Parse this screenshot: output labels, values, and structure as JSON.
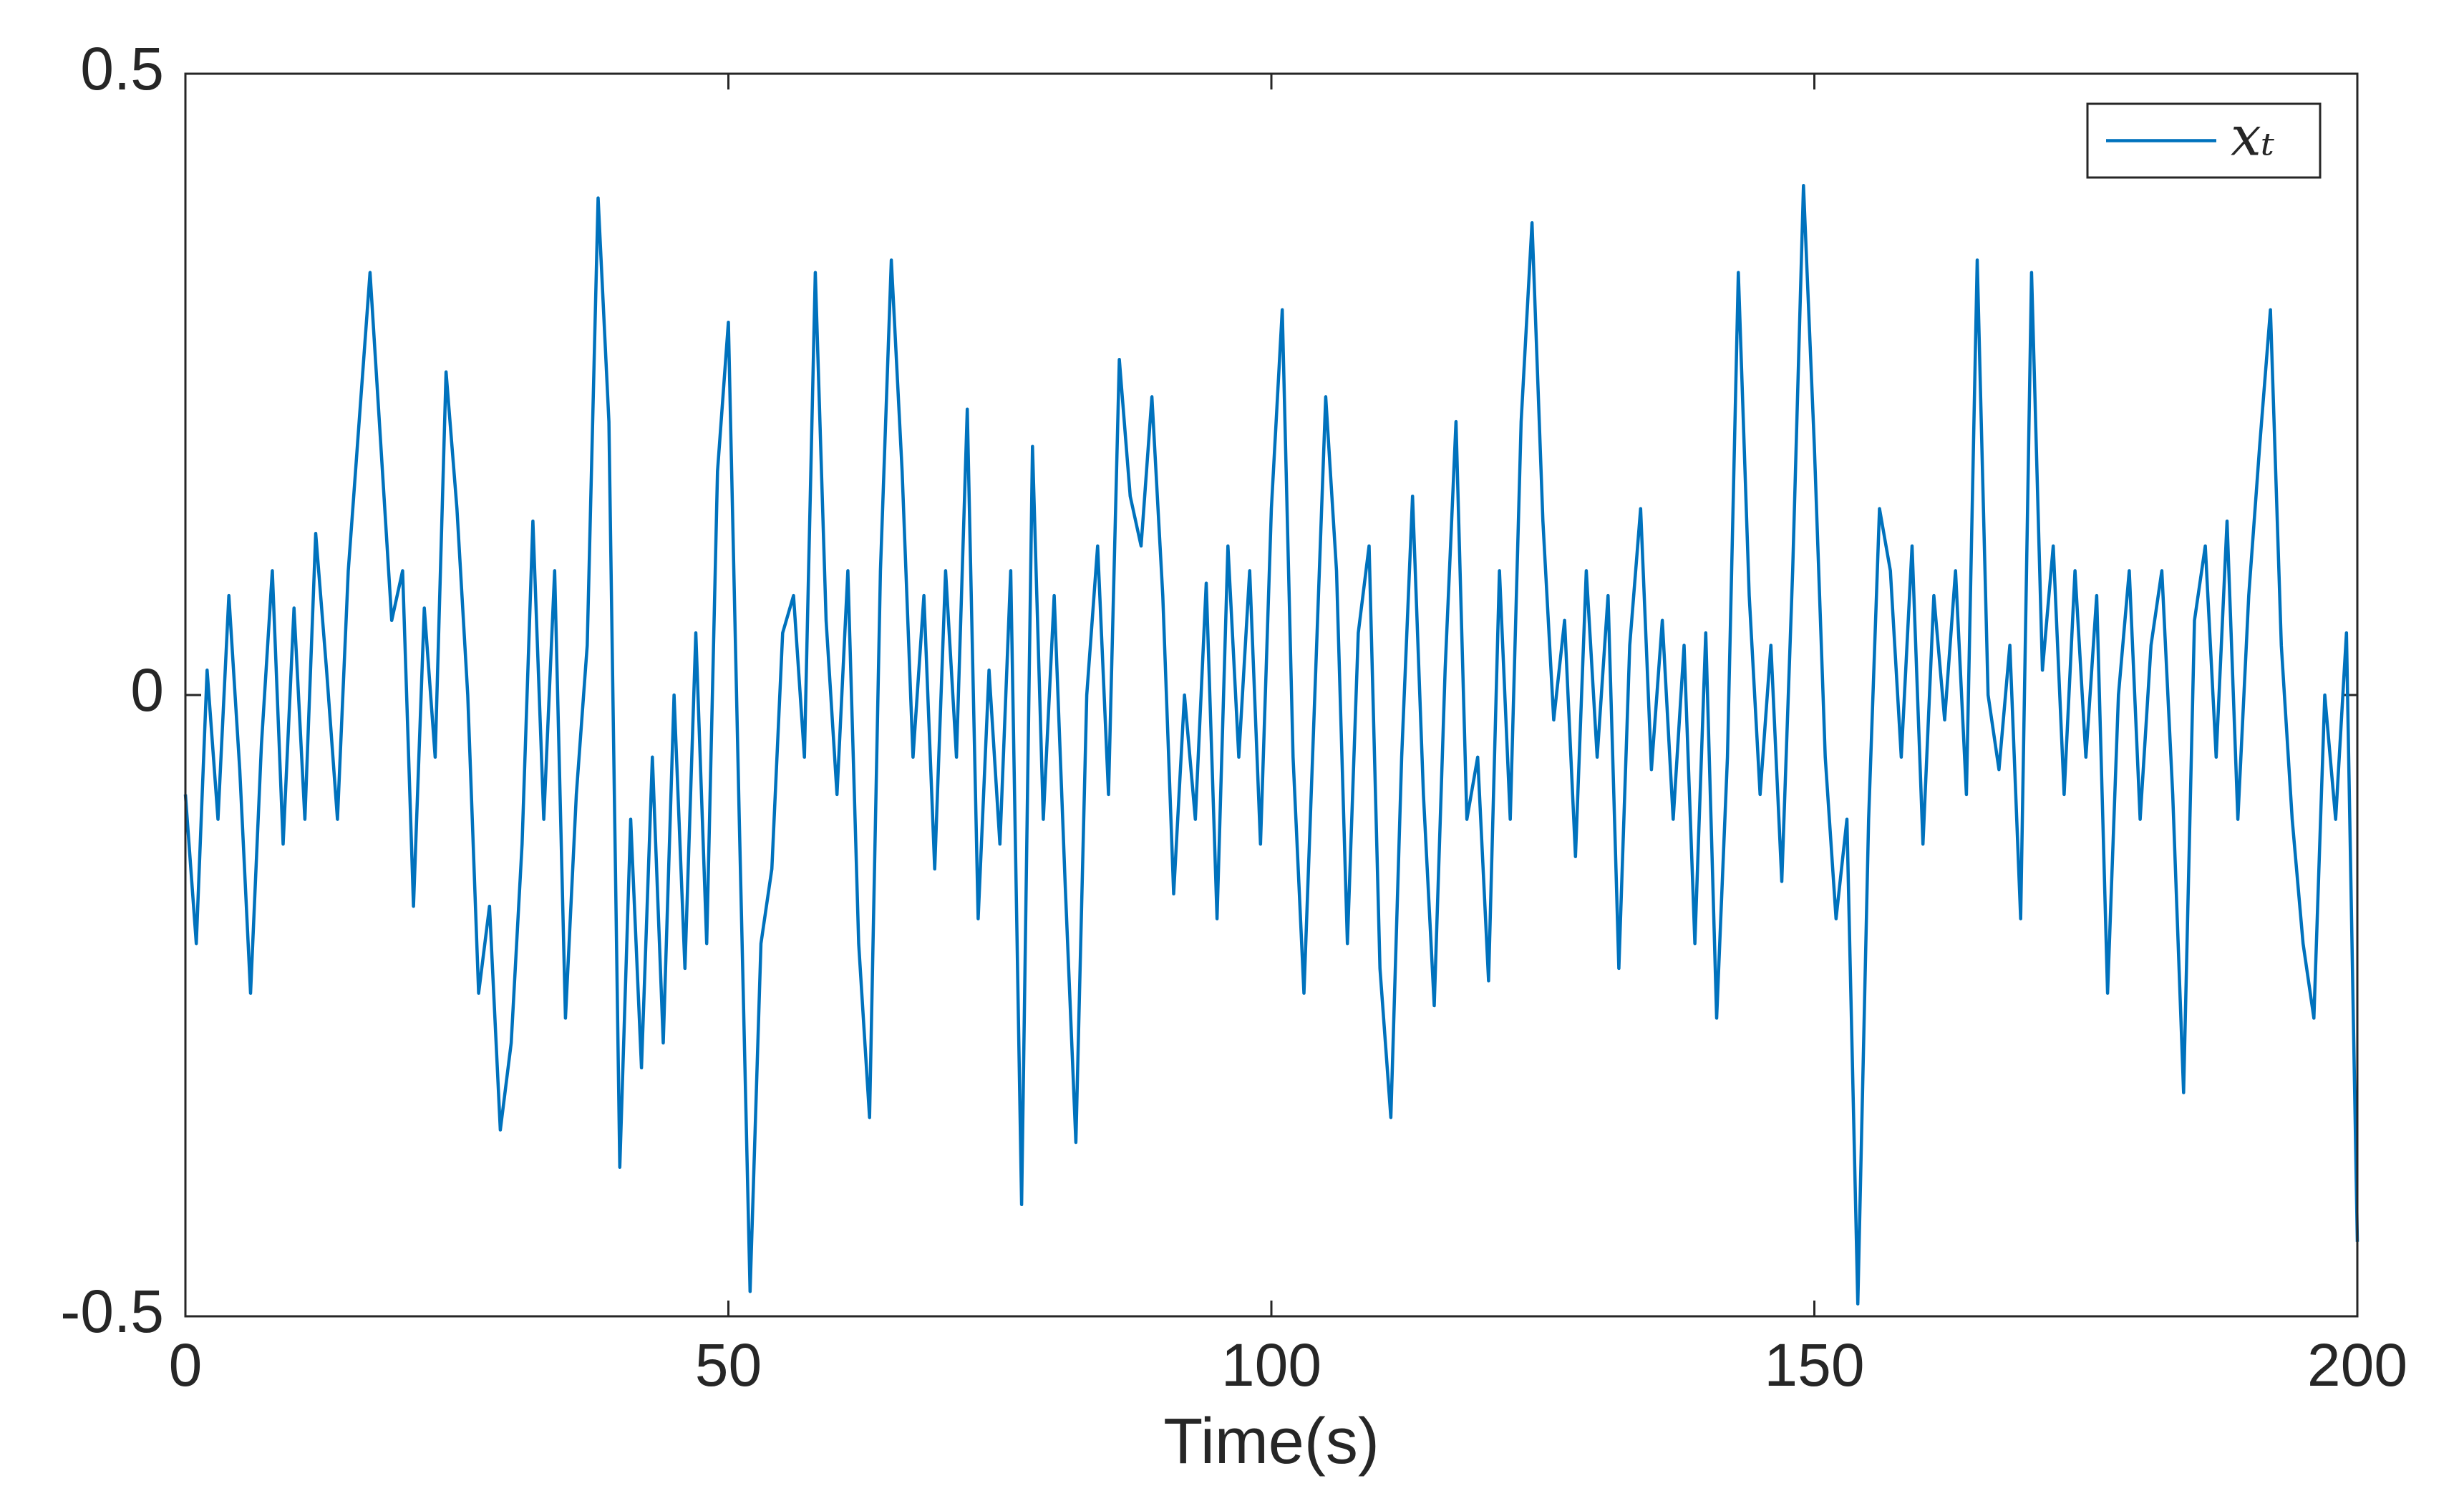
{
  "chart_data": {
    "type": "line",
    "xlabel": "Time(s)",
    "x": [
      0,
      1,
      2,
      3,
      4,
      5,
      6,
      7,
      8,
      9,
      10,
      11,
      12,
      13,
      14,
      15,
      16,
      17,
      18,
      19,
      20,
      21,
      22,
      23,
      24,
      25,
      26,
      27,
      28,
      29,
      30,
      31,
      32,
      33,
      34,
      35,
      36,
      37,
      38,
      39,
      40,
      41,
      42,
      43,
      44,
      45,
      46,
      47,
      48,
      49,
      50,
      51,
      52,
      53,
      54,
      55,
      56,
      57,
      58,
      59,
      60,
      61,
      62,
      63,
      64,
      65,
      66,
      67,
      68,
      69,
      70,
      71,
      72,
      73,
      74,
      75,
      76,
      77,
      78,
      79,
      80,
      81,
      82,
      83,
      84,
      85,
      86,
      87,
      88,
      89,
      90,
      91,
      92,
      93,
      94,
      95,
      96,
      97,
      98,
      99,
      100,
      101,
      102,
      103,
      104,
      105,
      106,
      107,
      108,
      109,
      110,
      111,
      112,
      113,
      114,
      115,
      116,
      117,
      118,
      119,
      120,
      121,
      122,
      123,
      124,
      125,
      126,
      127,
      128,
      129,
      130,
      131,
      132,
      133,
      134,
      135,
      136,
      137,
      138,
      139,
      140,
      141,
      142,
      143,
      144,
      145,
      146,
      147,
      148,
      149,
      150,
      151,
      152,
      153,
      154,
      155,
      156,
      157,
      158,
      159,
      160,
      161,
      162,
      163,
      164,
      165,
      166,
      167,
      168,
      169,
      170,
      171,
      172,
      173,
      174,
      175,
      176,
      177,
      178,
      179,
      180,
      181,
      182,
      183,
      184,
      185,
      186,
      187,
      188,
      189,
      190,
      191,
      192,
      193,
      194,
      195,
      196,
      197,
      198,
      199,
      200
    ],
    "series": [
      {
        "name": "𝑥ₜ",
        "color": "#0072bd",
        "values": [
          -0.08,
          -0.2,
          0.02,
          -0.1,
          0.08,
          -0.06,
          -0.24,
          -0.04,
          0.1,
          -0.12,
          0.07,
          -0.1,
          0.13,
          0.02,
          -0.1,
          0.1,
          0.22,
          0.34,
          0.2,
          0.06,
          0.1,
          -0.17,
          0.07,
          -0.05,
          0.26,
          0.15,
          0.0,
          -0.24,
          -0.17,
          -0.35,
          -0.28,
          -0.12,
          0.14,
          -0.1,
          0.1,
          -0.26,
          -0.08,
          0.04,
          0.4,
          0.22,
          -0.38,
          -0.1,
          -0.3,
          -0.05,
          -0.28,
          0.0,
          -0.22,
          0.05,
          -0.2,
          0.18,
          0.3,
          -0.1,
          -0.48,
          -0.2,
          -0.14,
          0.05,
          0.08,
          -0.05,
          0.34,
          0.06,
          -0.08,
          0.1,
          -0.2,
          -0.34,
          0.1,
          0.35,
          0.18,
          -0.05,
          0.08,
          -0.14,
          0.1,
          -0.05,
          0.23,
          -0.18,
          0.02,
          -0.12,
          0.1,
          -0.41,
          0.2,
          -0.1,
          0.08,
          -0.15,
          -0.36,
          0.0,
          0.12,
          -0.08,
          0.27,
          0.16,
          0.12,
          0.24,
          0.08,
          -0.16,
          0.0,
          -0.1,
          0.09,
          -0.18,
          0.12,
          -0.05,
          0.1,
          -0.12,
          0.15,
          0.31,
          -0.05,
          -0.24,
          0.0,
          0.24,
          0.1,
          -0.2,
          0.05,
          0.12,
          -0.22,
          -0.34,
          -0.05,
          0.16,
          -0.08,
          -0.25,
          0.02,
          0.22,
          -0.1,
          -0.05,
          -0.23,
          0.1,
          -0.1,
          0.22,
          0.38,
          0.14,
          -0.02,
          0.06,
          -0.13,
          0.1,
          -0.05,
          0.08,
          -0.22,
          0.04,
          0.15,
          -0.06,
          0.06,
          -0.1,
          0.04,
          -0.2,
          0.05,
          -0.26,
          -0.05,
          0.34,
          0.08,
          -0.08,
          0.04,
          -0.15,
          0.1,
          0.41,
          0.2,
          -0.05,
          -0.18,
          -0.1,
          -0.49,
          -0.1,
          0.15,
          0.1,
          -0.05,
          0.12,
          -0.12,
          0.08,
          -0.02,
          0.1,
          -0.08,
          0.35,
          0.0,
          -0.06,
          0.04,
          -0.18,
          0.34,
          0.02,
          0.12,
          -0.08,
          0.1,
          -0.05,
          0.08,
          -0.24,
          0.0,
          0.1,
          -0.1,
          0.04,
          0.1,
          -0.08,
          -0.32,
          0.06,
          0.12,
          -0.05,
          0.14,
          -0.1,
          0.08,
          0.2,
          0.31,
          0.04,
          -0.1,
          -0.2,
          -0.26,
          0.0,
          -0.1,
          0.05,
          -0.44
        ]
      }
    ],
    "xlim": [
      0,
      200
    ],
    "xticks": [
      0,
      50,
      100,
      150,
      200
    ],
    "ylim": [
      -0.5,
      0.5
    ],
    "yticks": [
      -0.5,
      0,
      0.5
    ],
    "grid": false,
    "legend": "upper right"
  }
}
